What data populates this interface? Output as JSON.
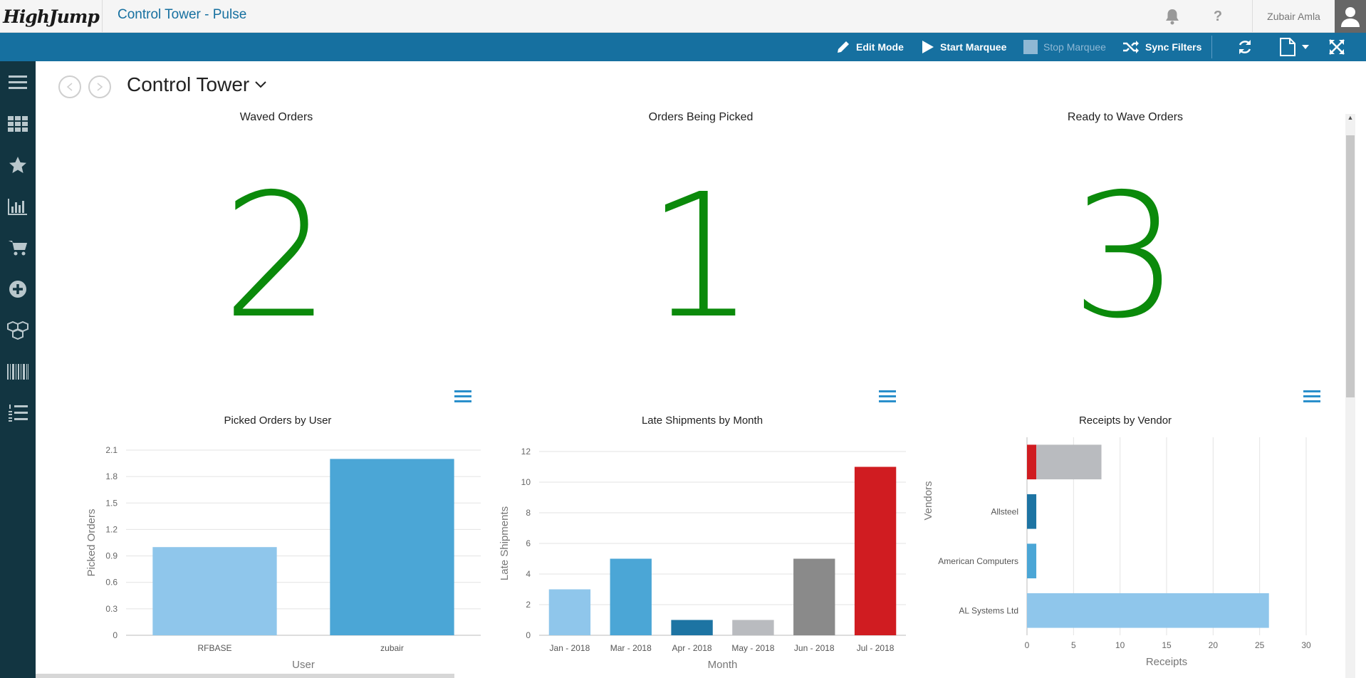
{
  "header": {
    "logo_text": "HighJump",
    "app_title": "Control Tower - Pulse",
    "user_name": "Zubair Amla"
  },
  "toolbar": {
    "edit_mode": "Edit Mode",
    "start_marquee": "Start Marquee",
    "stop_marquee": "Stop Marquee",
    "sync_filters": "Sync Filters"
  },
  "sidebar": {
    "icons": [
      "menu-icon",
      "apps-grid-icon",
      "star-icon",
      "bar-chart-icon",
      "cart-icon",
      "plus-circle-icon",
      "boxes-icon",
      "barcode-icon",
      "numbered-list-icon"
    ]
  },
  "dashboard": {
    "title": "Control Tower"
  },
  "kpis": [
    {
      "title": "Waved Orders",
      "value": "2"
    },
    {
      "title": "Orders Being Picked",
      "value": "1"
    },
    {
      "title": "Ready to Wave Orders",
      "value": "3"
    }
  ],
  "chart_data": [
    {
      "type": "bar",
      "title": "Picked Orders by User",
      "xlabel": "User",
      "ylabel": "Picked Orders",
      "categories": [
        "RFBASE",
        "zubair"
      ],
      "values": [
        1,
        2
      ],
      "ylim": [
        0,
        2.1
      ],
      "yticks": [
        "0",
        "0.3",
        "0.6",
        "0.9",
        "1.2",
        "1.5",
        "1.8",
        "2.1"
      ],
      "colors": [
        "#8fc6eb",
        "#4ba6d6"
      ]
    },
    {
      "type": "bar",
      "title": "Late Shipments by Month",
      "xlabel": "Month",
      "ylabel": "Late Shipments",
      "categories": [
        "Jan - 2018",
        "Mar - 2018",
        "Apr - 2018",
        "May - 2018",
        "Jun - 2018",
        "Jul - 2018"
      ],
      "values": [
        3,
        5,
        1,
        1,
        5,
        11
      ],
      "ylim": [
        0,
        12
      ],
      "yticks": [
        "0",
        "2",
        "4",
        "6",
        "8",
        "10",
        "12"
      ],
      "colors": [
        "#8fc6eb",
        "#4ba6d6",
        "#1d74a3",
        "#b9bbbf",
        "#8a8a8a",
        "#d01c21"
      ]
    },
    {
      "type": "bar",
      "orientation": "horizontal",
      "stacked": true,
      "title": "Receipts by Vendor",
      "xlabel": "Receipts",
      "ylabel": "Vendors",
      "categories": [
        "",
        "Allsteel",
        "American Computers",
        "AL Systems Ltd"
      ],
      "series": [
        {
          "values": [
            1,
            1,
            1,
            26
          ],
          "colors": [
            "#d01c21",
            "#1d74a3",
            "#4ba6d6",
            "#8fc6eb"
          ]
        },
        {
          "values": [
            7,
            0,
            0,
            0
          ],
          "colors": [
            "#b9bbbf",
            "#b9bbbf",
            "#b9bbbf",
            "#b9bbbf"
          ]
        }
      ],
      "xlim": [
        0,
        30
      ],
      "xticks": [
        "0",
        "5",
        "10",
        "15",
        "20",
        "25",
        "30"
      ]
    }
  ]
}
